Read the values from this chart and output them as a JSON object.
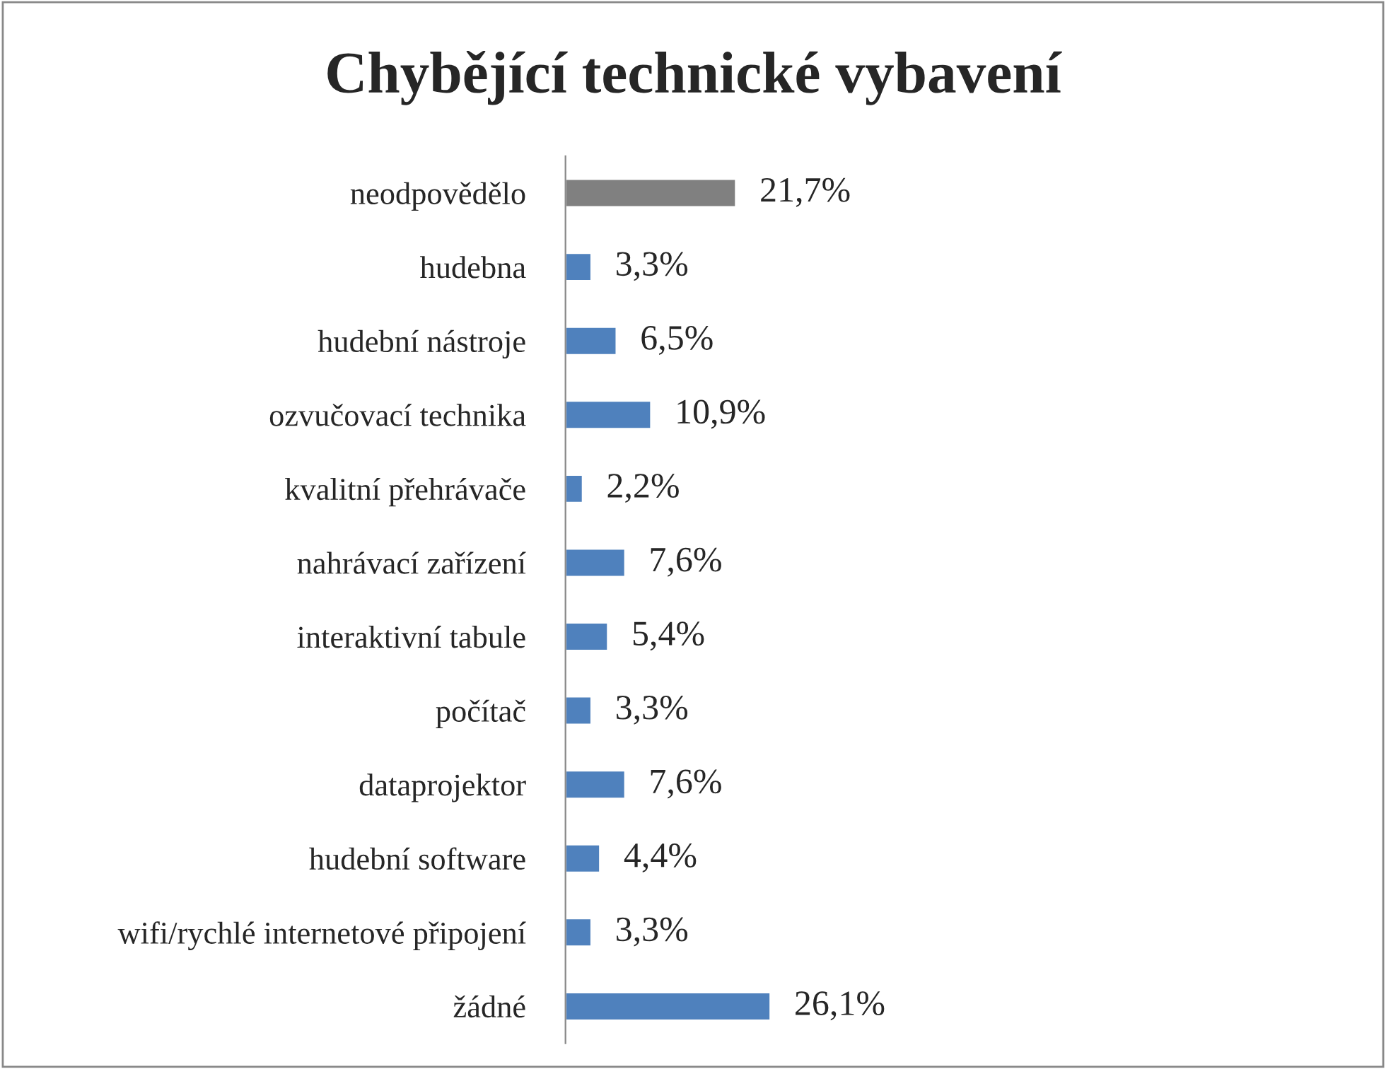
{
  "chart_data": {
    "type": "bar",
    "orientation": "horizontal",
    "title": "Chybějící technické vybavení",
    "categories": [
      "neodpovědělo",
      "hudebna",
      "hudební nástroje",
      "ozvučovací technika",
      "kvalitní přehrávače",
      "nahrávací zařízení",
      "interaktivní tabule",
      "počítač",
      "dataprojektor",
      "hudební software",
      "wifi/rychlé internetové připojení",
      "žádné"
    ],
    "values": [
      21.7,
      3.3,
      6.5,
      10.9,
      2.2,
      7.6,
      5.4,
      3.3,
      7.6,
      4.4,
      3.3,
      26.1
    ],
    "colors": [
      "#808080",
      "#4f81bd",
      "#4f81bd",
      "#4f81bd",
      "#4f81bd",
      "#4f81bd",
      "#4f81bd",
      "#4f81bd",
      "#4f81bd",
      "#4f81bd",
      "#4f81bd",
      "#4f81bd"
    ],
    "value_labels": [
      "21,7%",
      "3,3%",
      "6,5%",
      "10,9%",
      "2,2%",
      "7,6%",
      "5,4%",
      "3,3%",
      "7,6%",
      "4,4%",
      "3,3%",
      "26,1%"
    ],
    "tick_labels": "y",
    "grid": false,
    "legend": false
  }
}
